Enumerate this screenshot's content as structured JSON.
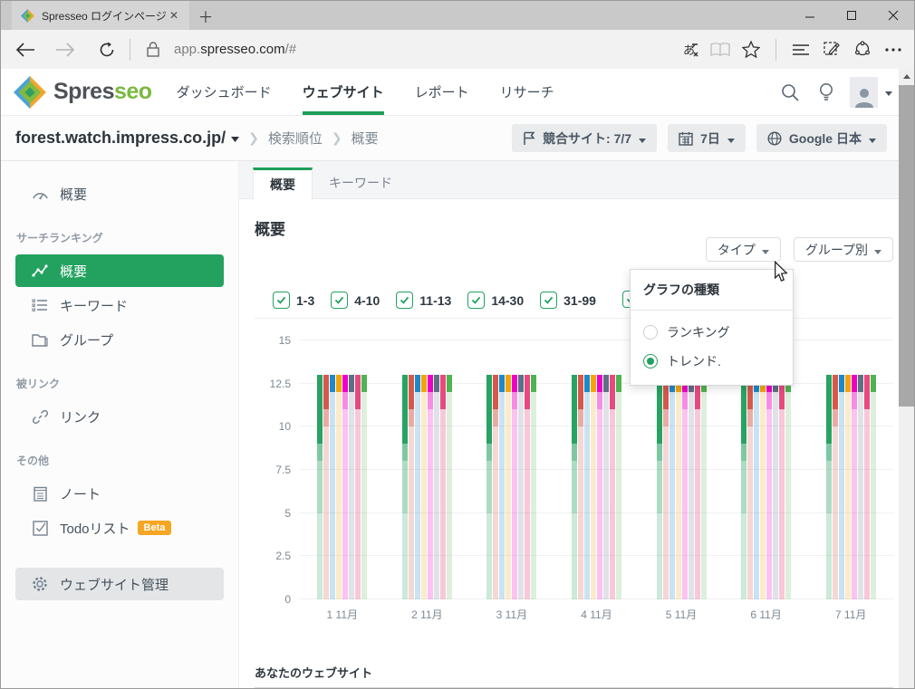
{
  "browser": {
    "tab_title": "Spresseo ログインページ",
    "url": {
      "prefix": "app.",
      "host": "spresseo.com",
      "path": "/#"
    }
  },
  "header": {
    "logo": {
      "part1": "Spres",
      "part2": "seo"
    },
    "nav": [
      {
        "label": "ダッシュボード",
        "active": false
      },
      {
        "label": "ウェブサイト",
        "active": true
      },
      {
        "label": "レポート",
        "active": false
      },
      {
        "label": "リサーチ",
        "active": false
      }
    ]
  },
  "toolbar": {
    "site": "forest.watch.impress.co.jp/",
    "crumbs": [
      "検索順位",
      "概要"
    ],
    "filters": [
      {
        "icon": "flag",
        "label": "競合サイト: 7/7"
      },
      {
        "icon": "calendar",
        "label": "7日"
      },
      {
        "icon": "globe",
        "label": "Google 日本"
      }
    ]
  },
  "sidebar": {
    "overview": "概要",
    "sections": [
      {
        "title": "サーチランキング",
        "items": [
          {
            "label": "概要",
            "active": true
          },
          {
            "label": "キーワード"
          },
          {
            "label": "グループ"
          }
        ]
      },
      {
        "title": "被リンク",
        "items": [
          {
            "label": "リンク"
          }
        ]
      },
      {
        "title": "その他",
        "items": [
          {
            "label": "ノート"
          },
          {
            "label": "Todoリスト",
            "badge": "Beta"
          }
        ]
      }
    ],
    "manage": "ウェブサイト管理"
  },
  "main": {
    "tabs": [
      {
        "label": "概要",
        "active": true
      },
      {
        "label": "キーワード",
        "active": false
      }
    ],
    "title": "概要",
    "type_button": "タイプ",
    "group_button": "グループ別",
    "checkboxes": [
      {
        "label": "1-3",
        "checked": true
      },
      {
        "label": "4-10",
        "checked": true
      },
      {
        "label": "11-13",
        "checked": true
      },
      {
        "label": "14-30",
        "checked": true
      },
      {
        "label": "31-99",
        "checked": true
      },
      {
        "label": "",
        "checked": true
      }
    ],
    "dropdown": {
      "title": "グラフの種類",
      "options": [
        {
          "label": "ランキング",
          "selected": false
        },
        {
          "label": "トレンド.",
          "selected": true
        }
      ]
    },
    "footer_heading": "あなたのウェブサイト"
  },
  "chart_data": {
    "type": "bar",
    "variant": "grouped bars, one bar per website; segment opacity encodes rank bucket (1-3 solid at top, lower buckets increasingly transparent)",
    "x_labels": [
      "1 11月",
      "2 11月",
      "3 11月",
      "4 11月",
      "5 11月",
      "6 11月",
      "7 11月"
    ],
    "ylim": [
      0,
      15
    ],
    "yticks": [
      0,
      2.5,
      5,
      7.5,
      10,
      12.5,
      15
    ],
    "bar_top_value": 13,
    "rank_buckets_visible": [
      "1-3",
      "4-10",
      "11-13",
      "14-30",
      "31-99"
    ],
    "sites": [
      {
        "color": "#28a363",
        "segments": [
          {
            "to": 9,
            "alpha": 1
          },
          {
            "to": 8,
            "alpha": 0.6
          },
          {
            "to": 5,
            "alpha": 0.38
          },
          {
            "to": 0,
            "alpha": 0.24
          }
        ]
      },
      {
        "color": "#d4594c",
        "segments": [
          {
            "to": 11,
            "alpha": 1
          },
          {
            "to": 10,
            "alpha": 0.5
          },
          {
            "to": 0,
            "alpha": 0.24
          }
        ]
      },
      {
        "color": "#1f88c9",
        "segments": [
          {
            "to": 12,
            "alpha": 1
          },
          {
            "to": 0,
            "alpha": 0.24
          }
        ]
      },
      {
        "color": "#f3a40c",
        "segments": [
          {
            "to": 12,
            "alpha": 1
          },
          {
            "to": 0,
            "alpha": 0.22
          }
        ]
      },
      {
        "color": "#ee00c7",
        "segments": [
          {
            "to": 12,
            "alpha": 1
          },
          {
            "to": 11,
            "alpha": 0.45
          },
          {
            "to": 0,
            "alpha": 0.24
          }
        ]
      },
      {
        "color": "#5d7084",
        "segments": [
          {
            "to": 12,
            "alpha": 1
          },
          {
            "to": 0,
            "alpha": 0.2
          }
        ]
      },
      {
        "color": "#e8497f",
        "segments": [
          {
            "to": 11,
            "alpha": 1
          },
          {
            "to": 0,
            "alpha": 0.3
          }
        ]
      },
      {
        "color": "#4eb44f",
        "segments": [
          {
            "to": 12,
            "alpha": 1
          },
          {
            "to": 0,
            "alpha": 0.2
          }
        ]
      }
    ]
  }
}
